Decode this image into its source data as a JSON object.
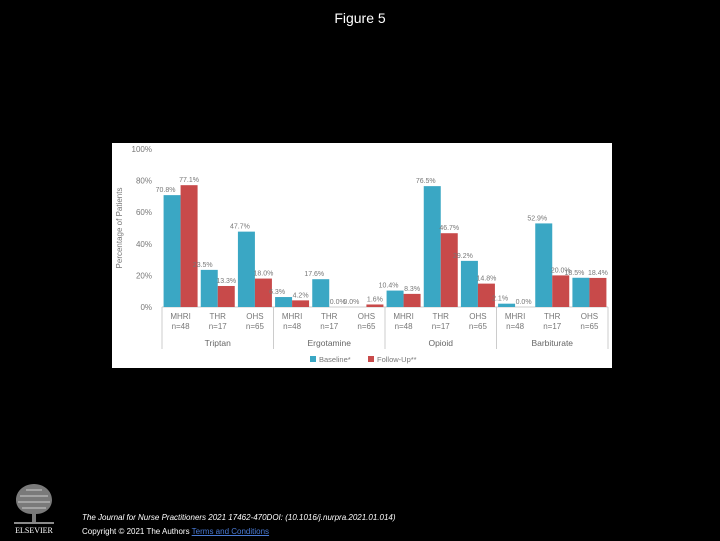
{
  "figure_title": "Figure 5",
  "chart_data": {
    "type": "bar",
    "ylabel": "Percentage of Patients",
    "ylim": [
      0,
      100
    ],
    "yticks": [
      "0%",
      "20%",
      "40%",
      "60%",
      "80%",
      "100%"
    ],
    "groups": [
      {
        "name": "Triptan",
        "categories": [
          {
            "label": "MHRI",
            "n": "n=48",
            "baseline": 70.8,
            "followup": 77.1,
            "baseline_label": "70.8%",
            "followup_label": "77.1%"
          },
          {
            "label": "THR",
            "n": "n=17",
            "baseline": 23.5,
            "followup": 13.3,
            "baseline_label": "23.5%",
            "followup_label": "13.3%"
          },
          {
            "label": "OHS",
            "n": "n=65",
            "baseline": 47.7,
            "followup": 18.0,
            "baseline_label": "47.7%",
            "followup_label": "18.0%"
          }
        ]
      },
      {
        "name": "Ergotamine",
        "categories": [
          {
            "label": "MHRI",
            "n": "n=48",
            "baseline": 6.3,
            "followup": 4.2,
            "baseline_label": "6.3%",
            "followup_label": "4.2%"
          },
          {
            "label": "THR",
            "n": "n=17",
            "baseline": 17.6,
            "followup": 0.0,
            "baseline_label": "17.6%",
            "followup_label": "0.0%"
          },
          {
            "label": "OHS",
            "n": "n=65",
            "baseline": 0.0,
            "followup": 1.6,
            "baseline_label": "0.0%",
            "followup_label": "1.6%"
          }
        ]
      },
      {
        "name": "Opioid",
        "categories": [
          {
            "label": "MHRI",
            "n": "n=48",
            "baseline": 10.4,
            "followup": 8.3,
            "baseline_label": "10.4%",
            "followup_label": "8.3%"
          },
          {
            "label": "THR",
            "n": "n=17",
            "baseline": 76.5,
            "followup": 46.7,
            "baseline_label": "76.5%",
            "followup_label": "46.7%"
          },
          {
            "label": "OHS",
            "n": "n=65",
            "baseline": 29.2,
            "followup": 14.8,
            "baseline_label": "29.2%",
            "followup_label": "14.8%"
          }
        ]
      },
      {
        "name": "Barbiturate",
        "categories": [
          {
            "label": "MHRI",
            "n": "n=48",
            "baseline": 2.1,
            "followup": 0.0,
            "baseline_label": "2.1%",
            "followup_label": "0.0%"
          },
          {
            "label": "THR",
            "n": "n=17",
            "baseline": 52.9,
            "followup": 20.0,
            "baseline_label": "52.9%",
            "followup_label": "20.0%"
          },
          {
            "label": "OHS",
            "n": "n=65",
            "baseline": 18.5,
            "followup": 18.4,
            "baseline_label": "18.5%",
            "followup_label": "18.4%"
          }
        ]
      }
    ],
    "series": [
      {
        "key": "baseline",
        "name": "Baseline*",
        "color": "#3aa7c4"
      },
      {
        "key": "followup",
        "name": "Follow-Up**",
        "color": "#c84a4a"
      }
    ],
    "legend": "bottom-center",
    "grid": false
  },
  "footer": {
    "journal": "The Journal for Nurse Practitioners 2021 17462-470DOI: (10.1016/j.nurpra.2021.01.014)",
    "copyright": "Copyright © 2021 The Authors",
    "terms": "Terms and Conditions"
  },
  "logo": {
    "wordmark": "ELSEVIER",
    "icon": "elsevier-tree-icon"
  }
}
